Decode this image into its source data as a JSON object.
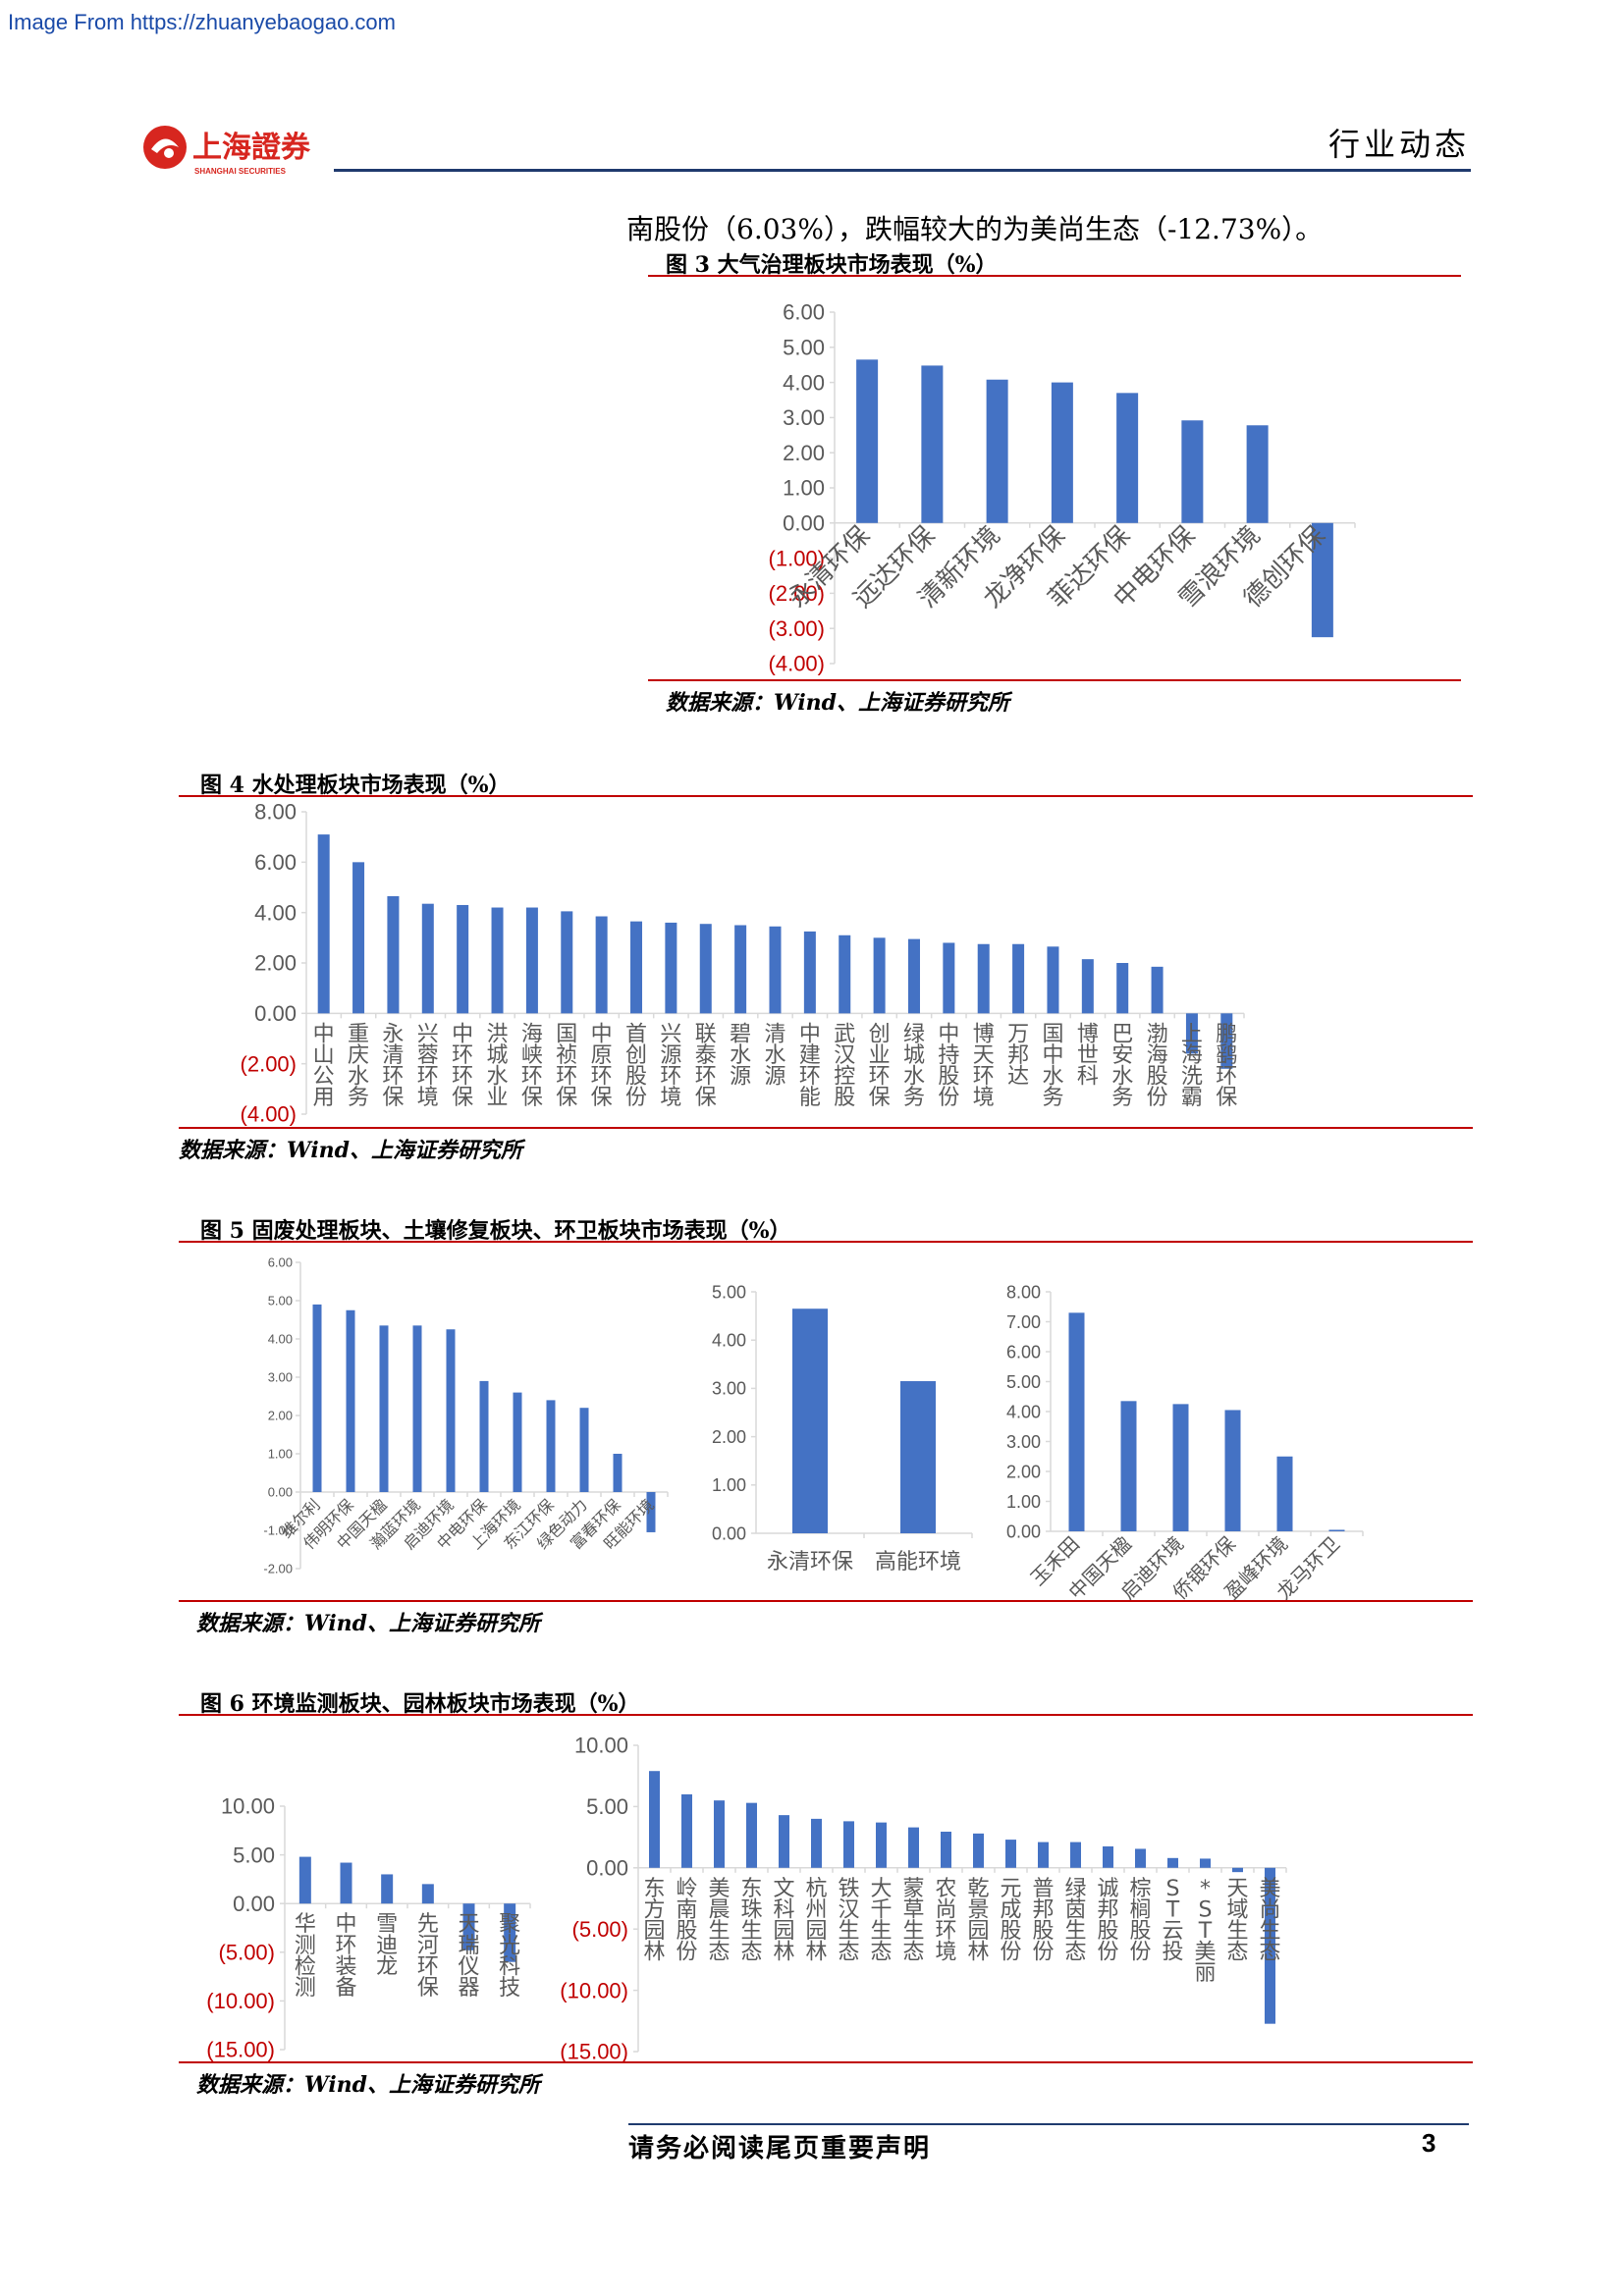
{
  "page": {
    "source_link": "Image From https://zhuanyebaogao.com",
    "logo": {
      "name_cn": "上海證券",
      "name_en": "SHANGHAI SECURITIES"
    },
    "section": "行业动态",
    "intro": "南股份（6.03%），跌幅较大的为美尚生态（-12.73%）。",
    "footer_note": "请务必阅读尾页重要声明",
    "page_number": "3",
    "bar_color": "#4472c4",
    "rule_color": "#c00000"
  },
  "figures": {
    "f3": {
      "title": "图 3 大气治理板块市场表现（%）",
      "source": "数据来源：Wind、上海证券研究所"
    },
    "f4": {
      "title": "图 4 水处理板块市场表现（%）",
      "source": "数据来源：Wind、上海证券研究所"
    },
    "f5": {
      "title": "图 5 固废处理板块、土壤修复板块、环卫板块市场表现（%）",
      "source": "数据来源：Wind、上海证券研究所"
    },
    "f6": {
      "title": "图 6 环境监测板块、园林板块市场表现（%）",
      "source": "数据来源：Wind、上海证券研究所"
    }
  },
  "chart_data": [
    {
      "id": "c3",
      "type": "bar",
      "categories": [
        "永清环保",
        "远达环保",
        "清新环境",
        "龙净环保",
        "菲达环保",
        "中电环保",
        "雪浪环境",
        "德创环保"
      ],
      "values": [
        4.65,
        4.48,
        4.08,
        4.0,
        3.7,
        2.92,
        2.78,
        -3.25
      ],
      "ylim": [
        -4,
        6
      ],
      "yticks": [
        "6.00",
        "5.00",
        "4.00",
        "3.00",
        "2.00",
        "1.00",
        "0.00",
        "(1.00)",
        "(2.00)",
        "(3.00)",
        "(4.00)"
      ]
    },
    {
      "id": "c4",
      "type": "bar",
      "categories": [
        "中山公用",
        "重庆水务",
        "永清环保",
        "兴蓉环境",
        "中环环保",
        "洪城水业",
        "海峡环保",
        "国祯环保",
        "中原环保",
        "首创股份",
        "兴源环境",
        "联泰环保",
        "碧水源",
        "清水源",
        "中建环能",
        "武汉控股",
        "创业环保",
        "绿城水务",
        "中持股份",
        "博天环境",
        "万邦达",
        "国中水务",
        "博世科",
        "巴安水务",
        "渤海股份",
        "上海洗霸",
        "鹏鹞环保"
      ],
      "values": [
        7.1,
        6.0,
        4.65,
        4.35,
        4.3,
        4.2,
        4.2,
        4.05,
        3.85,
        3.65,
        3.6,
        3.55,
        3.5,
        3.45,
        3.25,
        3.1,
        3.0,
        2.95,
        2.8,
        2.75,
        2.75,
        2.65,
        2.15,
        2.0,
        1.85,
        -1.6,
        -2.2
      ],
      "ylim": [
        -4,
        8
      ],
      "yticks": [
        "8.00",
        "6.00",
        "4.00",
        "2.00",
        "0.00",
        "(2.00)",
        "(4.00)"
      ]
    },
    {
      "id": "c5a",
      "type": "bar",
      "categories": [
        "维尔利",
        "伟明环保",
        "中国天楹",
        "瀚蓝环境",
        "启迪环境",
        "中电环保",
        "上海环境",
        "东江环保",
        "绿色动力",
        "富春环保",
        "旺能环境"
      ],
      "values": [
        4.9,
        4.75,
        4.35,
        4.35,
        4.25,
        2.9,
        2.6,
        2.4,
        2.2,
        1.0,
        -1.05
      ],
      "ylim": [
        -2,
        6
      ],
      "yticks": [
        "6.00",
        "5.00",
        "4.00",
        "3.00",
        "2.00",
        "1.00",
        "0.00",
        "-1.00",
        "-2.00"
      ]
    },
    {
      "id": "c5b",
      "type": "bar",
      "categories": [
        "永清环保",
        "高能环境"
      ],
      "values": [
        4.65,
        3.15
      ],
      "ylim": [
        0,
        5
      ],
      "yticks": [
        "5.00",
        "4.00",
        "3.00",
        "2.00",
        "1.00",
        "0.00"
      ]
    },
    {
      "id": "c5c",
      "type": "bar",
      "categories": [
        "玉禾田",
        "中国天楹",
        "启迪环境",
        "侨银环保",
        "盈峰环境",
        "龙马环卫"
      ],
      "values": [
        7.3,
        4.35,
        4.25,
        4.05,
        2.5,
        0.05
      ],
      "ylim": [
        0,
        8
      ],
      "yticks": [
        "8.00",
        "7.00",
        "6.00",
        "5.00",
        "4.00",
        "3.00",
        "2.00",
        "1.00",
        "0.00"
      ]
    },
    {
      "id": "c6a",
      "type": "bar",
      "categories": [
        "华测检测",
        "中环装备",
        "雪迪龙",
        "先河环保",
        "天瑞仪器",
        "聚光科技"
      ],
      "values": [
        4.8,
        4.2,
        3.0,
        2.0,
        -4.8,
        -6.0
      ],
      "ylim": [
        -15,
        10
      ],
      "yticks": [
        "10.00",
        "5.00",
        "0.00",
        "(5.00)",
        "(10.00)",
        "(15.00)"
      ]
    },
    {
      "id": "c6b",
      "type": "bar",
      "categories": [
        "东方园林",
        "岭南股份",
        "美晨生态",
        "东珠生态",
        "文科园林",
        "杭州园林",
        "铁汉生态",
        "大千生态",
        "蒙草生态",
        "农尚环境",
        "乾景园林",
        "元成股份",
        "普邦股份",
        "绿茵生态",
        "诚邦股份",
        "棕榈股份",
        "ST云投",
        "*ST美丽",
        "天域生态",
        "美尚生态"
      ],
      "values": [
        7.9,
        6.0,
        5.5,
        5.3,
        4.3,
        4.0,
        3.8,
        3.7,
        3.3,
        2.95,
        2.8,
        2.3,
        2.1,
        2.1,
        1.75,
        1.55,
        0.8,
        0.75,
        -0.35,
        -12.73
      ],
      "ylim": [
        -15,
        10
      ],
      "yticks": [
        "10.00",
        "5.00",
        "0.00",
        "(5.00)",
        "(10.00)",
        "(15.00)"
      ]
    }
  ]
}
